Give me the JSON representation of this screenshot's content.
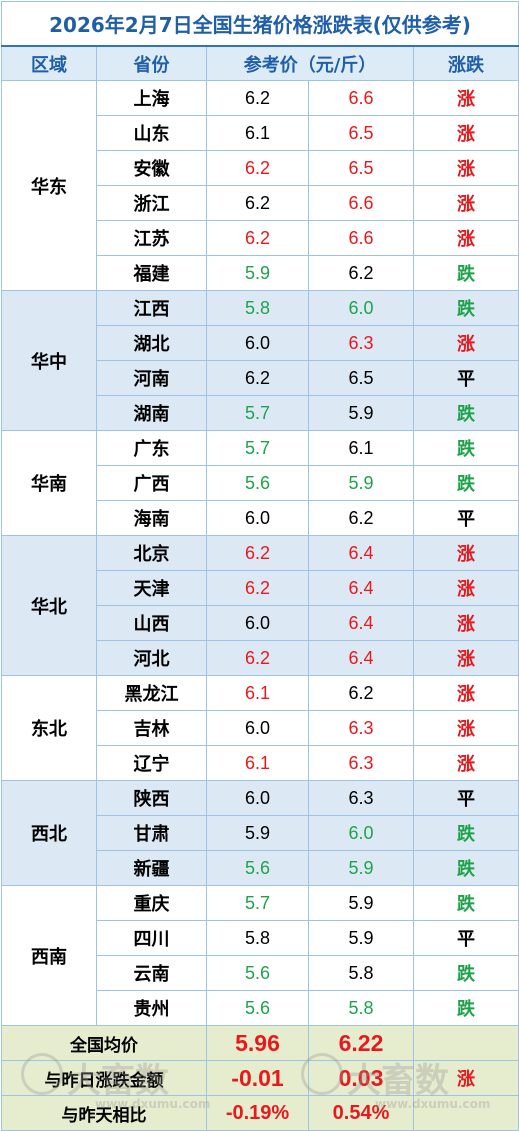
{
  "title": "2026年2月7日全国生猪价格涨跌表(仅供参考)",
  "headers": [
    "区域",
    "省份",
    "参考价（元/斤）",
    "涨跌"
  ],
  "colors": {
    "up": "#e8191c",
    "down": "#1fa34a",
    "flat": "#000000",
    "header_text": "#1f5fa8"
  },
  "regions": [
    {
      "name": "华东",
      "rows": [
        {
          "province": "上海",
          "prev": "6.2",
          "prev_color": "flat",
          "curr": "6.6",
          "curr_color": "up",
          "change": "涨",
          "change_color": "up"
        },
        {
          "province": "山东",
          "prev": "6.1",
          "prev_color": "flat",
          "curr": "6.5",
          "curr_color": "up",
          "change": "涨",
          "change_color": "up"
        },
        {
          "province": "安徽",
          "prev": "6.2",
          "prev_color": "up",
          "curr": "6.5",
          "curr_color": "up",
          "change": "涨",
          "change_color": "up"
        },
        {
          "province": "浙江",
          "prev": "6.2",
          "prev_color": "flat",
          "curr": "6.6",
          "curr_color": "up",
          "change": "涨",
          "change_color": "up"
        },
        {
          "province": "江苏",
          "prev": "6.2",
          "prev_color": "up",
          "curr": "6.6",
          "curr_color": "up",
          "change": "涨",
          "change_color": "up"
        },
        {
          "province": "福建",
          "prev": "5.9",
          "prev_color": "down",
          "curr": "6.2",
          "curr_color": "flat",
          "change": "跌",
          "change_color": "down"
        }
      ]
    },
    {
      "name": "华中",
      "rows": [
        {
          "province": "江西",
          "prev": "5.8",
          "prev_color": "down",
          "curr": "6.0",
          "curr_color": "down",
          "change": "跌",
          "change_color": "down"
        },
        {
          "province": "湖北",
          "prev": "6.0",
          "prev_color": "flat",
          "curr": "6.3",
          "curr_color": "up",
          "change": "涨",
          "change_color": "up"
        },
        {
          "province": "河南",
          "prev": "6.2",
          "prev_color": "flat",
          "curr": "6.5",
          "curr_color": "flat",
          "change": "平",
          "change_color": "flat"
        },
        {
          "province": "湖南",
          "prev": "5.7",
          "prev_color": "down",
          "curr": "5.9",
          "curr_color": "flat",
          "change": "跌",
          "change_color": "down"
        }
      ]
    },
    {
      "name": "华南",
      "rows": [
        {
          "province": "广东",
          "prev": "5.7",
          "prev_color": "down",
          "curr": "6.1",
          "curr_color": "flat",
          "change": "跌",
          "change_color": "down"
        },
        {
          "province": "广西",
          "prev": "5.6",
          "prev_color": "down",
          "curr": "5.9",
          "curr_color": "down",
          "change": "跌",
          "change_color": "down"
        },
        {
          "province": "海南",
          "prev": "6.0",
          "prev_color": "flat",
          "curr": "6.2",
          "curr_color": "flat",
          "change": "平",
          "change_color": "flat"
        }
      ]
    },
    {
      "name": "华北",
      "rows": [
        {
          "province": "北京",
          "prev": "6.2",
          "prev_color": "up",
          "curr": "6.4",
          "curr_color": "up",
          "change": "涨",
          "change_color": "up"
        },
        {
          "province": "天津",
          "prev": "6.2",
          "prev_color": "up",
          "curr": "6.4",
          "curr_color": "up",
          "change": "涨",
          "change_color": "up"
        },
        {
          "province": "山西",
          "prev": "6.0",
          "prev_color": "flat",
          "curr": "6.4",
          "curr_color": "up",
          "change": "涨",
          "change_color": "up"
        },
        {
          "province": "河北",
          "prev": "6.2",
          "prev_color": "up",
          "curr": "6.4",
          "curr_color": "up",
          "change": "涨",
          "change_color": "up"
        }
      ]
    },
    {
      "name": "东北",
      "rows": [
        {
          "province": "黑龙江",
          "prev": "6.1",
          "prev_color": "up",
          "curr": "6.2",
          "curr_color": "flat",
          "change": "涨",
          "change_color": "up"
        },
        {
          "province": "吉林",
          "prev": "6.0",
          "prev_color": "flat",
          "curr": "6.3",
          "curr_color": "up",
          "change": "涨",
          "change_color": "up"
        },
        {
          "province": "辽宁",
          "prev": "6.1",
          "prev_color": "up",
          "curr": "6.3",
          "curr_color": "up",
          "change": "涨",
          "change_color": "up"
        }
      ]
    },
    {
      "name": "西北",
      "rows": [
        {
          "province": "陕西",
          "prev": "6.0",
          "prev_color": "flat",
          "curr": "6.3",
          "curr_color": "flat",
          "change": "平",
          "change_color": "flat"
        },
        {
          "province": "甘肃",
          "prev": "5.9",
          "prev_color": "flat",
          "curr": "6.0",
          "curr_color": "down",
          "change": "跌",
          "change_color": "down"
        },
        {
          "province": "新疆",
          "prev": "5.6",
          "prev_color": "down",
          "curr": "5.9",
          "curr_color": "down",
          "change": "跌",
          "change_color": "down"
        }
      ]
    },
    {
      "name": "西南",
      "rows": [
        {
          "province": "重庆",
          "prev": "5.7",
          "prev_color": "down",
          "curr": "5.9",
          "curr_color": "flat",
          "change": "跌",
          "change_color": "down"
        },
        {
          "province": "四川",
          "prev": "5.8",
          "prev_color": "flat",
          "curr": "5.9",
          "curr_color": "flat",
          "change": "平",
          "change_color": "flat"
        },
        {
          "province": "云南",
          "prev": "5.6",
          "prev_color": "down",
          "curr": "5.8",
          "curr_color": "flat",
          "change": "跌",
          "change_color": "down"
        },
        {
          "province": "贵州",
          "prev": "5.6",
          "prev_color": "down",
          "curr": "5.8",
          "curr_color": "down",
          "change": "跌",
          "change_color": "down"
        }
      ]
    }
  ],
  "footer": {
    "avg_label": "全国均价",
    "avg_prev": "5.96",
    "avg_curr": "6.22",
    "diff_label": "与昨日涨跌金额",
    "diff_prev": "-0.01",
    "diff_curr": "0.03",
    "diff_change": "涨",
    "pct_label": "与昨天相比",
    "pct_prev": "-0.19%",
    "pct_curr": "0.54%"
  },
  "watermark": {
    "text": "大畜数",
    "url": "www.dxumu.com"
  }
}
